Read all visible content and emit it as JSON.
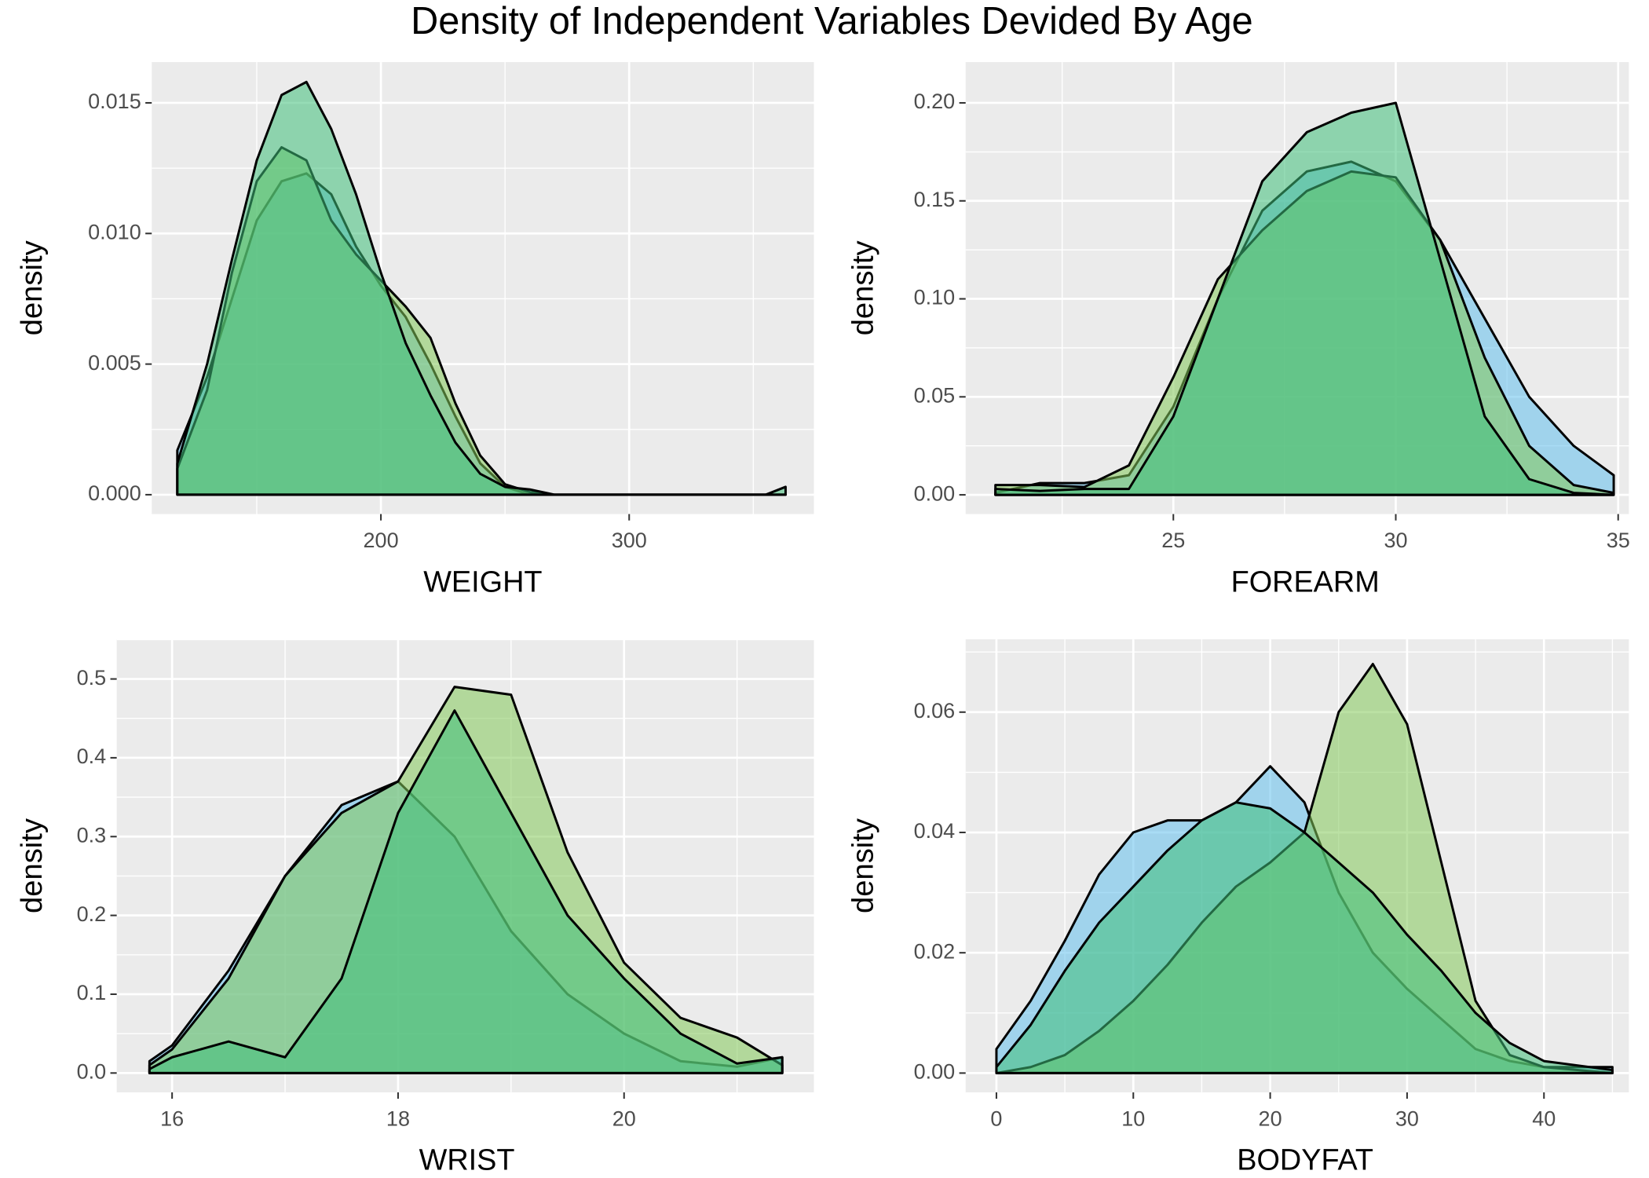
{
  "title": "Density of Independent Variables Devided By Age",
  "chart_data": [
    {
      "type": "density",
      "xlabel": "WEIGHT",
      "ylabel": "density",
      "x": [
        118,
        130,
        140,
        150,
        160,
        170,
        180,
        190,
        200,
        210,
        220,
        230,
        240,
        250,
        260,
        270,
        280,
        300,
        340,
        355,
        363
      ],
      "series": [
        {
          "color": "#62c0ec",
          "values": [
            0.0017,
            0.0045,
            0.0075,
            0.0105,
            0.012,
            0.0123,
            0.0115,
            0.0095,
            0.008,
            0.0068,
            0.005,
            0.003,
            0.0012,
            0.0003,
            0,
            0,
            0,
            0,
            0,
            0,
            0
          ]
        },
        {
          "color": "#84c85a",
          "values": [
            0.001,
            0.004,
            0.0085,
            0.012,
            0.0133,
            0.0128,
            0.0105,
            0.0092,
            0.0082,
            0.0072,
            0.006,
            0.0035,
            0.0015,
            0.0004,
            0.0001,
            0,
            0,
            0,
            0,
            0,
            0
          ]
        },
        {
          "color": "#3fbf7a",
          "values": [
            0.0012,
            0.005,
            0.009,
            0.0128,
            0.0153,
            0.0158,
            0.014,
            0.0115,
            0.0085,
            0.0058,
            0.0038,
            0.002,
            0.0008,
            0.0003,
            0.0002,
            0,
            0,
            0,
            0,
            0,
            0.0003
          ]
        }
      ],
      "xlim": [
        107.7,
        374.4
      ],
      "ylim": [
        -0.00074,
        0.01656
      ],
      "xticks": [
        200,
        300
      ],
      "yticks": [
        {
          "value": 0,
          "label": "0.000"
        },
        0.005,
        {
          "value": 0.01,
          "label": "0.010"
        },
        0.015
      ],
      "grid": true
    },
    {
      "type": "density",
      "xlabel": "FOREARM",
      "ylabel": "density",
      "x": [
        21,
        22,
        23,
        24,
        25,
        26,
        27,
        28,
        29,
        30,
        31,
        32,
        33,
        34,
        34.9
      ],
      "series": [
        {
          "color": "#62c0ec",
          "values": [
            0.001,
            0.006,
            0.006,
            0.01,
            0.045,
            0.1,
            0.145,
            0.165,
            0.17,
            0.16,
            0.13,
            0.09,
            0.05,
            0.025,
            0.01
          ]
        },
        {
          "color": "#84c85a",
          "values": [
            0.005,
            0.005,
            0.004,
            0.015,
            0.06,
            0.11,
            0.135,
            0.155,
            0.165,
            0.162,
            0.13,
            0.07,
            0.025,
            0.005,
            0.001
          ]
        },
        {
          "color": "#3fbf7a",
          "values": [
            0.003,
            0.002,
            0.003,
            0.003,
            0.04,
            0.1,
            0.16,
            0.185,
            0.195,
            0.2,
            0.12,
            0.04,
            0.008,
            0.001,
            0
          ]
        }
      ],
      "xlim": [
        20.33,
        35.24
      ],
      "ylim": [
        -0.0098,
        0.2208
      ],
      "xticks": [
        25,
        30,
        35
      ],
      "yticks": [
        {
          "value": 0,
          "label": "0.00"
        },
        0.05,
        {
          "value": 0.1,
          "label": "0.10"
        },
        0.15,
        {
          "value": 0.2,
          "label": "0.20"
        }
      ],
      "grid": true
    },
    {
      "type": "density",
      "xlabel": "WRIST",
      "ylabel": "density",
      "x": [
        15.8,
        16,
        16.5,
        17,
        17.5,
        18,
        18.5,
        19,
        19.5,
        20,
        20.5,
        21,
        21.4
      ],
      "series": [
        {
          "color": "#62c0ec",
          "values": [
            0.015,
            0.035,
            0.13,
            0.25,
            0.34,
            0.37,
            0.3,
            0.18,
            0.1,
            0.05,
            0.015,
            0.008,
            0.02
          ]
        },
        {
          "color": "#84c85a",
          "values": [
            0.01,
            0.03,
            0.12,
            0.25,
            0.33,
            0.37,
            0.49,
            0.48,
            0.28,
            0.14,
            0.07,
            0.045,
            0.01
          ]
        },
        {
          "color": "#3fbf7a",
          "values": [
            0.005,
            0.02,
            0.04,
            0.02,
            0.12,
            0.33,
            0.46,
            0.33,
            0.2,
            0.12,
            0.05,
            0.012,
            0.02
          ]
        }
      ],
      "xlim": [
        15.51,
        21.68
      ],
      "ylim": [
        -0.0245,
        0.5503
      ],
      "xticks": [
        16,
        18,
        20
      ],
      "yticks": [
        {
          "value": 0,
          "label": "0.0"
        },
        0.1,
        0.2,
        0.3,
        0.4,
        0.5
      ],
      "grid": true
    },
    {
      "type": "density",
      "xlabel": "BODYFAT",
      "ylabel": "density",
      "x": [
        0,
        2.5,
        5,
        7.5,
        10,
        12.5,
        15,
        17.5,
        20,
        22.5,
        25,
        27.5,
        30,
        32.5,
        35,
        37.5,
        40,
        45
      ],
      "series": [
        {
          "color": "#62c0ec",
          "values": [
            0.004,
            0.012,
            0.022,
            0.033,
            0.04,
            0.042,
            0.042,
            0.045,
            0.051,
            0.045,
            0.03,
            0.02,
            0.014,
            0.009,
            0.004,
            0.002,
            0.001,
            0.001
          ]
        },
        {
          "color": "#84c85a",
          "values": [
            0,
            0.001,
            0.003,
            0.007,
            0.012,
            0.018,
            0.025,
            0.031,
            0.035,
            0.04,
            0.06,
            0.068,
            0.058,
            0.035,
            0.012,
            0.003,
            0.001,
            0
          ]
        },
        {
          "color": "#3fbf7a",
          "values": [
            0.001,
            0.008,
            0.017,
            0.025,
            0.031,
            0.037,
            0.042,
            0.045,
            0.044,
            0.04,
            0.035,
            0.03,
            0.023,
            0.017,
            0.01,
            0.005,
            0.002,
            0.0005
          ]
        }
      ],
      "xlim": [
        -2.25,
        46.2
      ],
      "ylim": [
        -0.0032,
        0.0721
      ],
      "xticks": [
        0,
        10,
        20,
        30,
        40
      ],
      "yticks": [
        {
          "value": 0,
          "label": "0.00"
        },
        0.02,
        0.04,
        0.06
      ],
      "grid": true
    }
  ]
}
